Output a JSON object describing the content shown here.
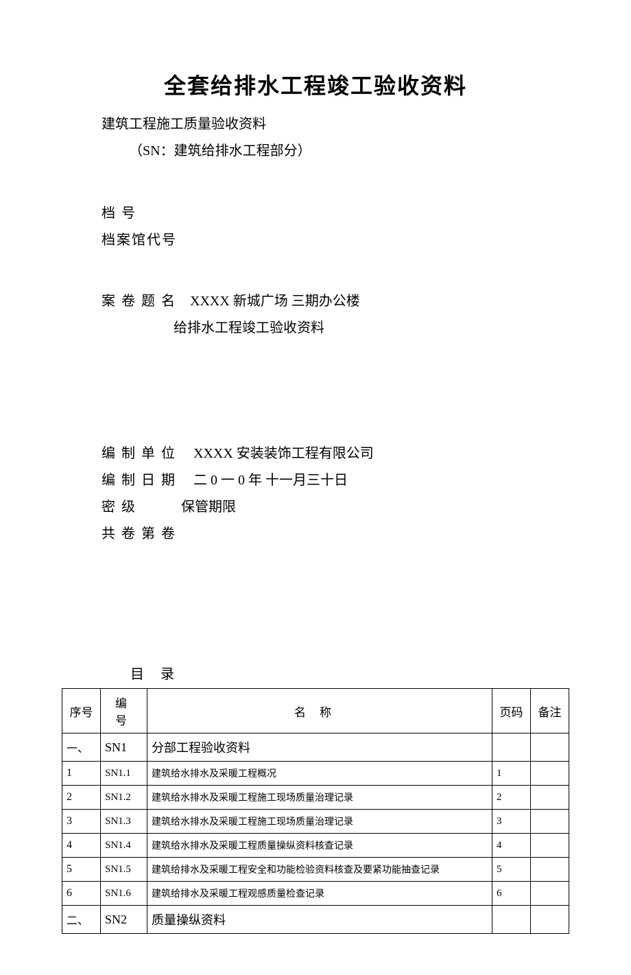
{
  "title": "全套给排水工程竣工验收资料",
  "subtitle1": "建筑工程施工质量验收资料",
  "subtitle2": "（SN：建筑给排水工程部分）",
  "archive_label": "档        号",
  "archive_code_label": "档案馆代号",
  "case_label": "案 卷 题 名",
  "case_value": "XXXX 新城广场  三期办公楼",
  "case_value_2": "给排水工程竣工验收资料",
  "compile_unit_label": "编 制 单 位",
  "compile_unit_value": "XXXX 安装装饰工程有限公司",
  "compile_date_label": "编 制 日 期",
  "compile_date_value": "二 0 一 0 年 十一月三十日",
  "security_label": "密            级",
  "retention_label": "保管期限",
  "volume_label": "共            卷    第          卷",
  "toc_title": "目录",
  "table": {
    "headers": {
      "seq": "序号",
      "code": "编   号",
      "name": "名称",
      "page": "页码",
      "note": "备注"
    },
    "rows": [
      {
        "seq": "一、",
        "code": "SN1",
        "name": "分部工程验收资料",
        "page": "",
        "section": true
      },
      {
        "seq": "1",
        "code": "SN1.1",
        "name": "建筑给水排水及采暖工程概况",
        "page": "1",
        "section": false
      },
      {
        "seq": "2",
        "code": "SN1.2",
        "name": "建筑给水排水及采暖工程施工现场质量治理记录",
        "page": "2",
        "section": false
      },
      {
        "seq": "3",
        "code": "SN1.3",
        "name": " 建筑给水排水及采暖工程施工现场质量治理记录",
        "page": "3",
        "section": false
      },
      {
        "seq": "4",
        "code": "SN1.4",
        "name": "建筑给水排水及采暖工程质量操纵资料核查记录",
        "page": "4",
        "section": false
      },
      {
        "seq": "5",
        "code": "SN1.5",
        "name": "建筑给排水及采暖工程安全和功能检验资料核查及要紧功能抽查记录",
        "page": "5",
        "section": false
      },
      {
        "seq": "6",
        "code": "SN1.6",
        "name": "建筑给排水及采暖工程观感质量检查记录",
        "page": "6",
        "section": false
      },
      {
        "seq": "二、",
        "code": "SN2",
        "name": "质量操纵资料",
        "page": "",
        "section": true
      }
    ]
  },
  "colors": {
    "text": "#000000",
    "background": "#ffffff",
    "border": "#000000"
  }
}
